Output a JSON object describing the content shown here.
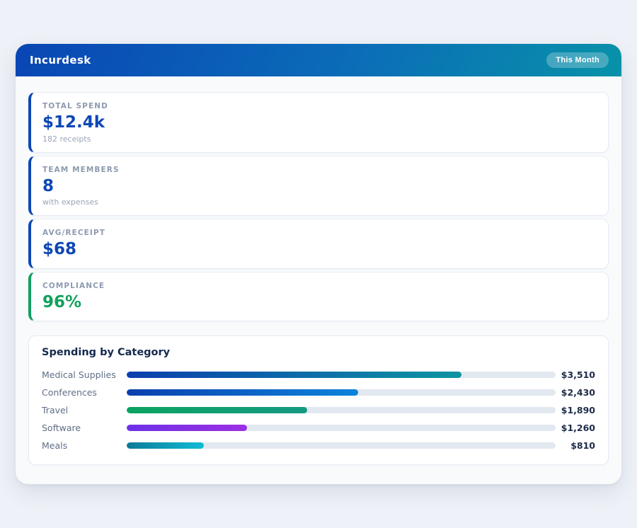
{
  "header": {
    "title": "Incurdesk",
    "badge": "This Month",
    "gradient": [
      "#0946b4",
      "#0b6cb8",
      "#0892a8"
    ]
  },
  "stats": [
    {
      "label": "TOTAL SPEND",
      "value": "$12.4k",
      "sub": "182 receipts",
      "accent": "#0d47b5",
      "value_color": "#0d47b5"
    },
    {
      "label": "TEAM MEMBERS",
      "value": "8",
      "sub": "with expenses",
      "accent": "#0d47b5",
      "value_color": "#0d47b5"
    },
    {
      "label": "AVG/RECEIPT",
      "value": "$68",
      "sub": "",
      "accent": "#0d47b5",
      "value_color": "#0d47b5"
    },
    {
      "label": "COMPLIANCE",
      "value": "96%",
      "sub": "",
      "accent": "#12a05e",
      "value_color": "#12a05e"
    }
  ],
  "chart_data": {
    "type": "bar",
    "orientation": "horizontal",
    "title": "Spending by Category",
    "categories": [
      "Medical Supplies",
      "Conferences",
      "Travel",
      "Software",
      "Meals"
    ],
    "values": [
      3510,
      2430,
      1890,
      1260,
      810
    ],
    "value_labels": [
      "$3,510",
      "$2,430",
      "$1,890",
      "$1,260",
      "$810"
    ],
    "xlim": [
      0,
      4500
    ],
    "grid": false,
    "legend": false,
    "track_color": "#e2e8f0",
    "bar_colors": [
      [
        "#0c3fae",
        "#0d95a2"
      ],
      [
        "#0c3fae",
        "#0b84dc"
      ],
      [
        "#0ba360",
        "#159a82"
      ],
      [
        "#6d32e6",
        "#9c2fe3"
      ],
      [
        "#0e7a9a",
        "#10bcd6"
      ]
    ]
  }
}
